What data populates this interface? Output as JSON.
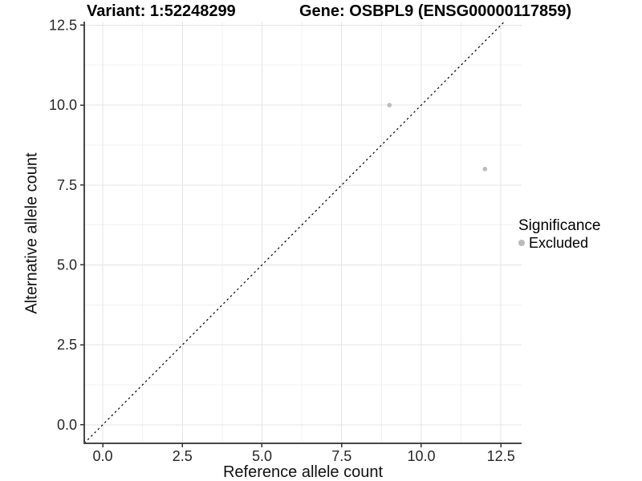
{
  "chart_data": {
    "type": "scatter",
    "title_left": "Variant: 1:52248299",
    "title_right": "Gene: OSBPL9 (ENSG00000117859)",
    "xlabel": "Reference allele count",
    "ylabel": "Alternative allele count",
    "x_ticks": [
      0,
      2.5,
      5,
      7.5,
      10,
      12.5
    ],
    "x_tick_labels": [
      "0.0",
      "2.5",
      "5.0",
      "7.5",
      "10.0",
      "12.5"
    ],
    "y_ticks": [
      0,
      2.5,
      5,
      7.5,
      10,
      12.5
    ],
    "y_tick_labels": [
      "0.0",
      "2.5",
      "5.0",
      "7.5",
      "10.0",
      "12.5"
    ],
    "xlim": [
      -0.58,
      13.15
    ],
    "ylim": [
      -0.58,
      12.61
    ],
    "grid": "major and minor gridlines, white background",
    "legend_position": "right",
    "series": [
      {
        "name": "Excluded",
        "color": "#bdbdbd",
        "points": [
          {
            "x": 9,
            "y": 10
          },
          {
            "x": 12,
            "y": 8
          }
        ]
      }
    ],
    "reference_line": {
      "slope": 1,
      "intercept": 0,
      "style": "dashed",
      "color": "#000000"
    },
    "legend": {
      "title": "Significance",
      "items": [
        {
          "label": "Excluded",
          "color": "#b9b9b9"
        }
      ]
    },
    "style": {
      "grid_major_color": "#e4e4e4",
      "grid_minor_color": "#f1f1f1",
      "axis_line_color": "#474747",
      "tick_mark_color": "#333333",
      "tick_label_color": "#262626",
      "point_radius": 2.8,
      "legend_point_radius": 4
    }
  }
}
